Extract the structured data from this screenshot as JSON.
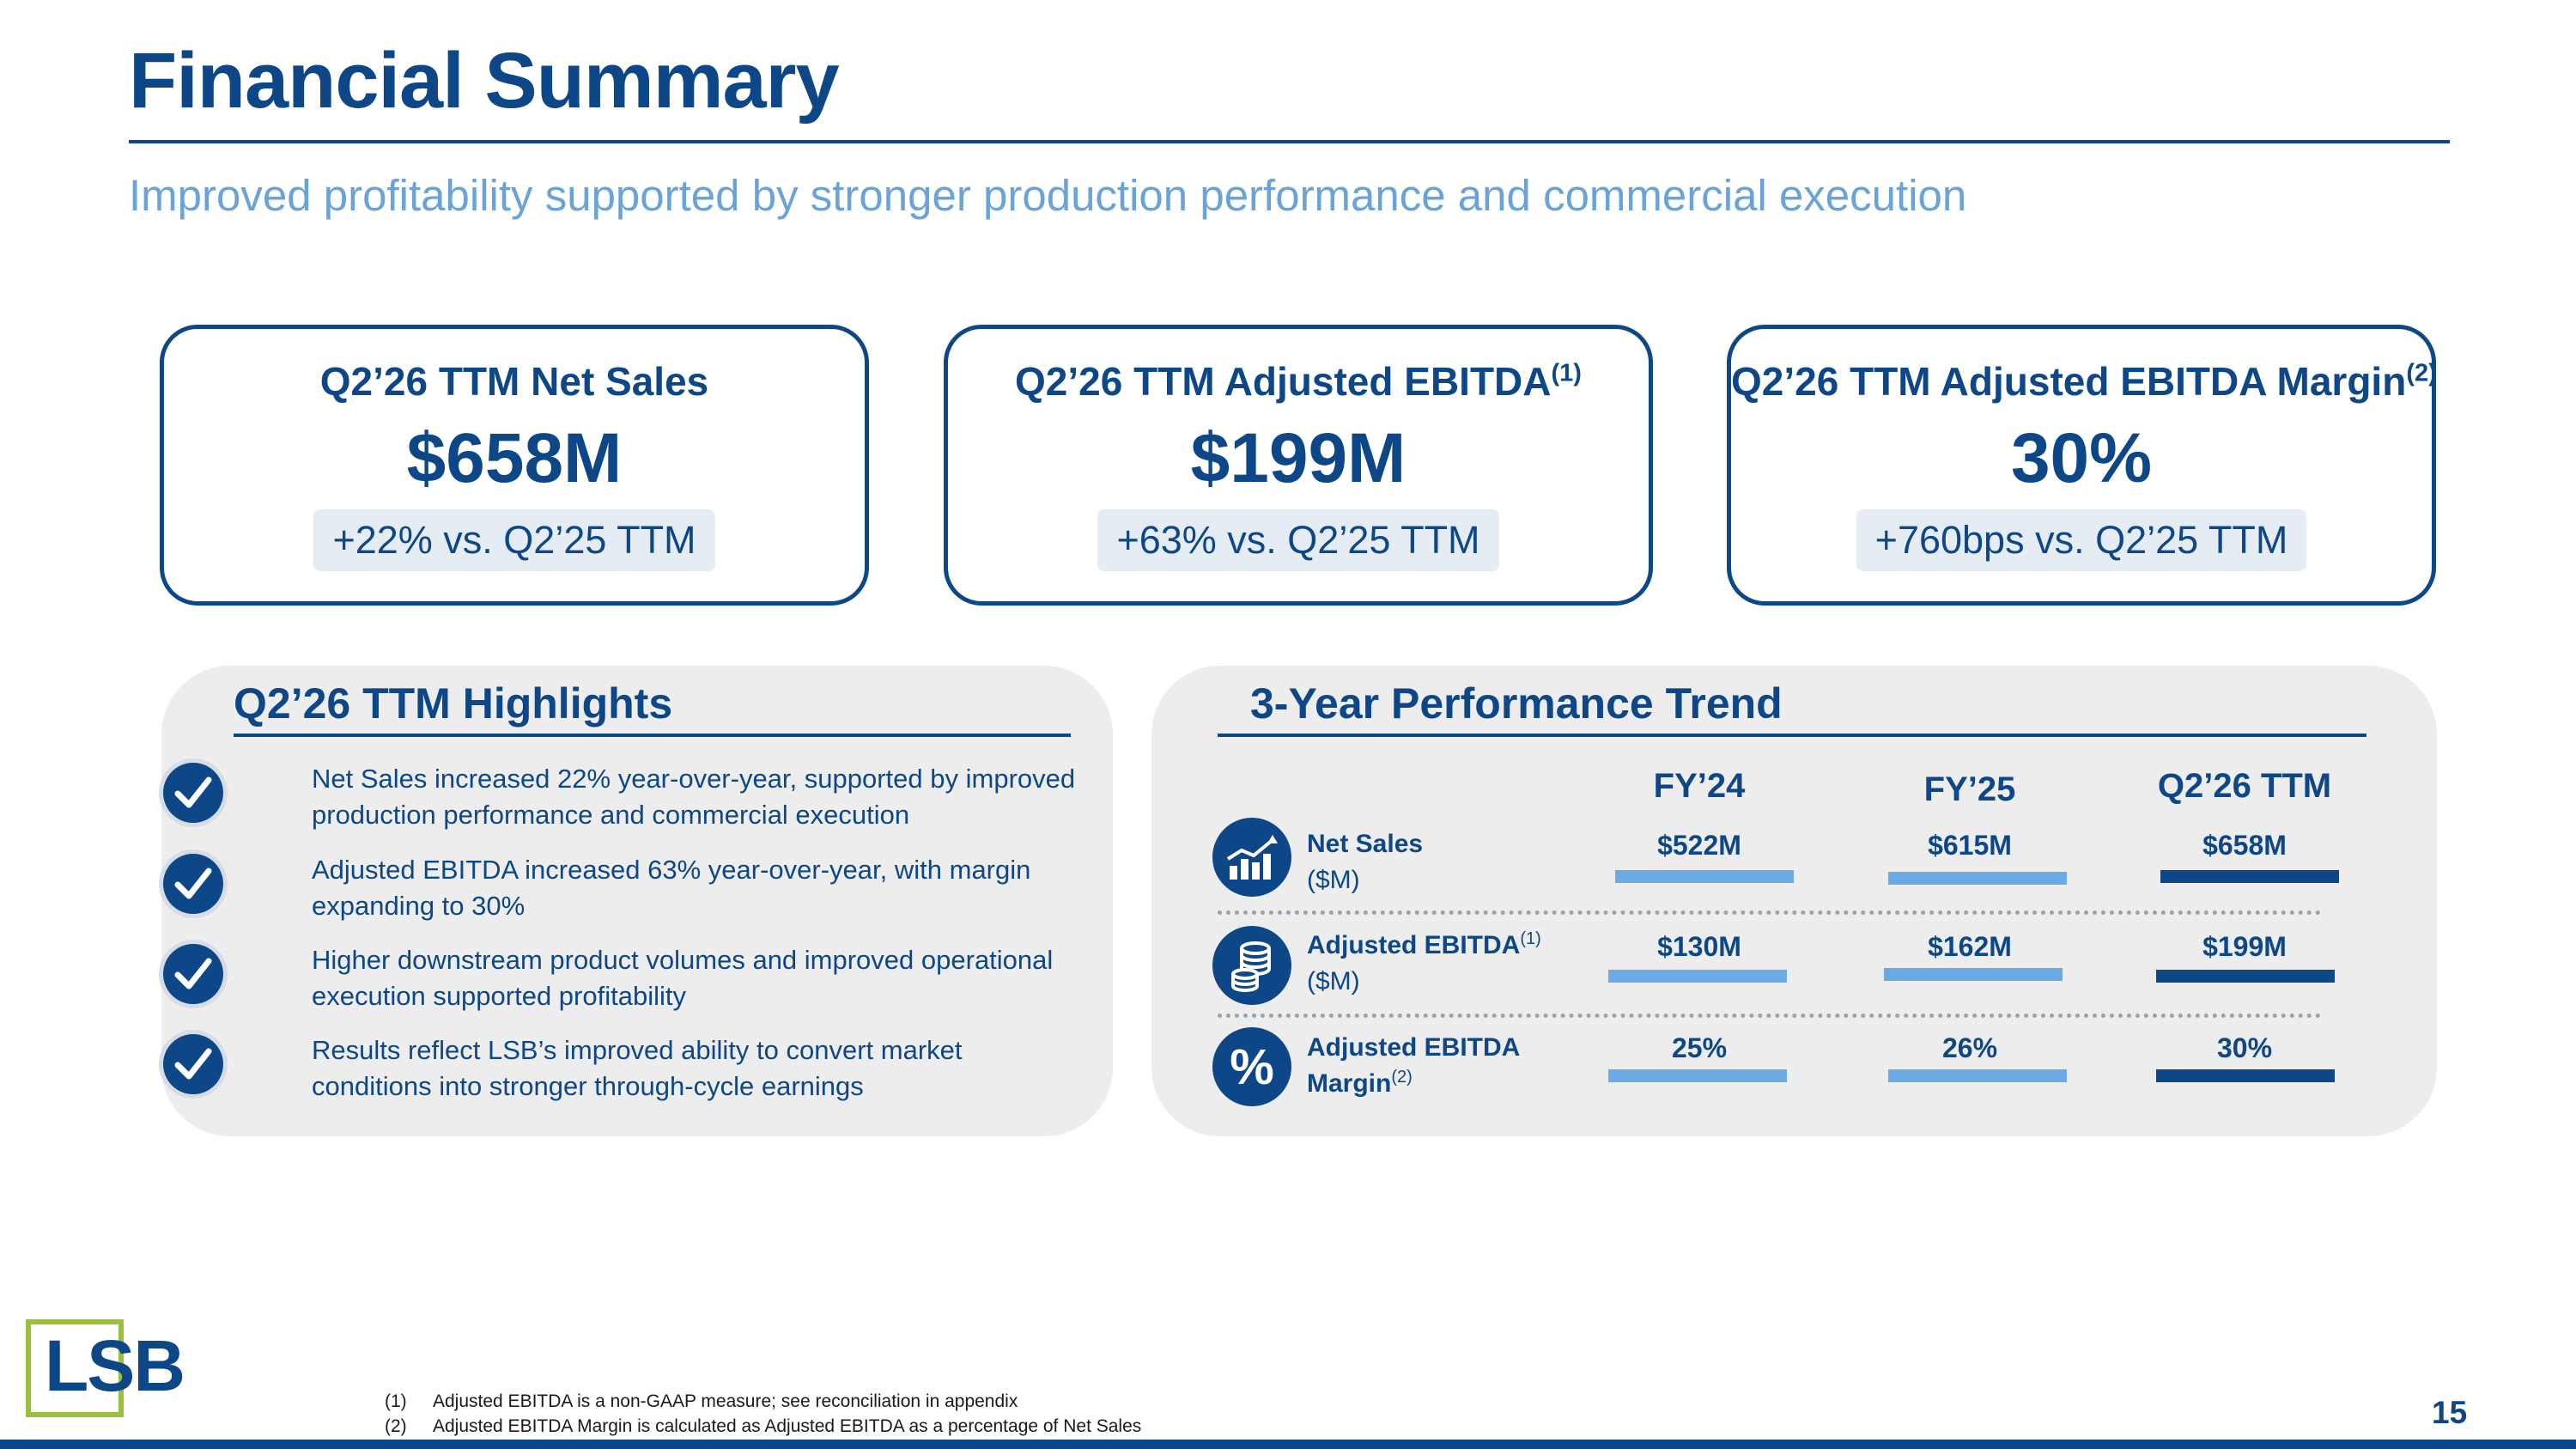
{
  "header": {
    "title": "Financial Summary",
    "subtitle": "Improved profitability supported by stronger production performance and commercial execution"
  },
  "kpis": [
    {
      "title": "Q2’26 TTM Net Sales",
      "sup": "",
      "value": "$658M",
      "change": "+22% vs. Q2’25 TTM"
    },
    {
      "title": "Q2’26 TTM Adjusted EBITDA",
      "sup": "(1)",
      "value": "$199M",
      "change": "+63% vs. Q2’25 TTM"
    },
    {
      "title": "Q2’26 TTM Adjusted EBITDA Margin",
      "sup": "(2)",
      "value": "30%",
      "change": "+760bps vs. Q2’25 TTM"
    }
  ],
  "highlights": {
    "title": "Q2’26 TTM Highlights",
    "items": [
      "Net Sales increased 22% year-over-year, supported by improved production performance and commercial execution",
      "Adjusted EBITDA increased 63% year-over-year, with margin expanding to 30%",
      "Higher downstream product volumes and improved operational execution supported profitability",
      "Results reflect LSB’s improved ability to convert market conditions into stronger through-cycle earnings"
    ],
    "icon": "check-circle-icon"
  },
  "trend": {
    "title": "3-Year Performance Trend",
    "columns": [
      "FY’24",
      "FY’25",
      "Q2’26 TTM"
    ],
    "rows": [
      {
        "label": "Net Sales",
        "sup": "",
        "unit": "($M)",
        "values": [
          "$522M",
          "$615M",
          "$658M"
        ],
        "icon": "bar-chart-icon"
      },
      {
        "label": "Adjusted EBITDA",
        "sup": "(1)",
        "unit": "($M)",
        "values": [
          "$130M",
          "$162M",
          "$199M"
        ],
        "icon": "coin-stack-icon"
      },
      {
        "label": "Adjusted EBITDA Margin",
        "sup": "(2)",
        "unit": "",
        "values": [
          "25%",
          "26%",
          "30%"
        ],
        "icon": "percent-icon"
      }
    ],
    "bar_colors": [
      "#6aabe6",
      "#6aabe6",
      "#0d4787"
    ]
  },
  "footer": {
    "logo": "LSB",
    "footnotes": [
      {
        "num": "(1)",
        "text": "Adjusted EBITDA is a non-GAAP measure; see reconciliation in appendix"
      },
      {
        "num": "(2)",
        "text": "Adjusted EBITDA Margin is calculated as Adjusted EBITDA as a percentage of Net Sales"
      }
    ],
    "page_number": "15"
  },
  "colors": {
    "primary": "#0d4787",
    "accent": "#6aa3d8",
    "logo_green": "#9bc13c",
    "panel_bg": "#ededed"
  }
}
